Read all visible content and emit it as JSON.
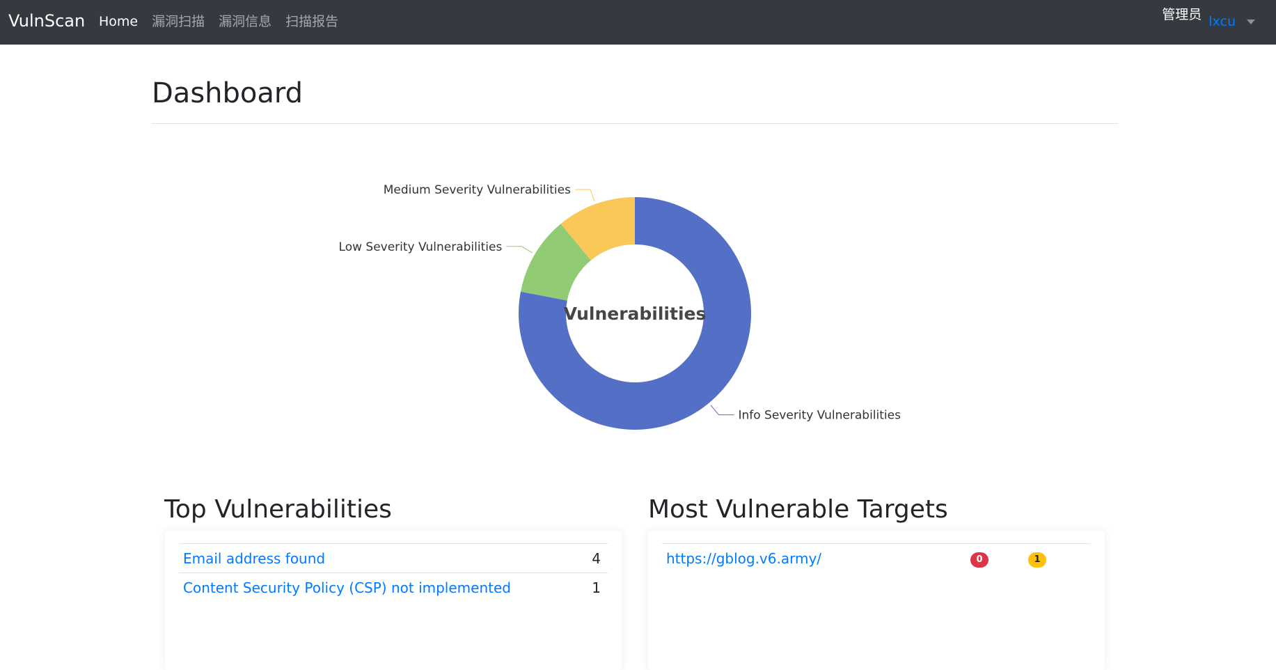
{
  "navbar": {
    "brand": "VulnScan",
    "links": [
      {
        "label": "Home"
      },
      {
        "label": "漏洞扫描"
      },
      {
        "label": "漏洞信息"
      },
      {
        "label": "扫描报告"
      }
    ],
    "user_role": "管理员",
    "user_name": "lxcu"
  },
  "page": {
    "title": "Dashboard"
  },
  "chart_data": {
    "type": "pie",
    "title": "Vulnerabilities",
    "labels": [
      "Info Severity Vulnerabilities",
      "Low Severity Vulnerabilities",
      "Medium Severity Vulnerabilities"
    ],
    "values": [
      78,
      11,
      11
    ],
    "colors": [
      "#5470c6",
      "#91cc75",
      "#fac858"
    ]
  },
  "top_vulnerabilities": {
    "title": "Top Vulnerabilities",
    "rows": [
      {
        "name": "Email address found",
        "count": "4"
      },
      {
        "name": "Content Security Policy (CSP) not implemented",
        "count": "1"
      }
    ]
  },
  "most_vulnerable_targets": {
    "title": "Most Vulnerable Targets",
    "rows": [
      {
        "target": "https://gblog.v6.army/",
        "badge_high": "0",
        "badge_medium": "1"
      }
    ],
    "badge_colors": {
      "high": "#dc3545",
      "medium": "#ffc107"
    }
  }
}
